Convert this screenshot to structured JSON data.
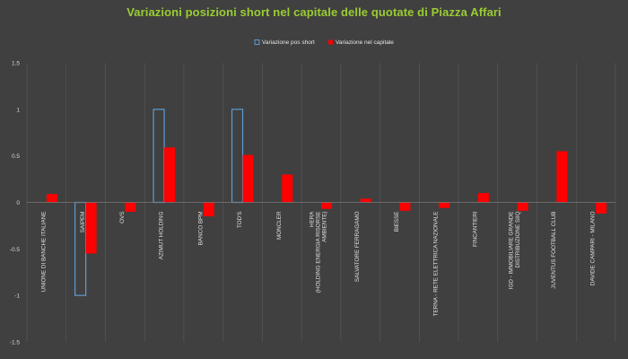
{
  "chart_data": {
    "type": "bar",
    "title": "Variazioni posizioni short nel capitale delle quotate di Piazza Affari",
    "xlabel": "",
    "ylabel": "",
    "ylim": [
      -1.5,
      1.5
    ],
    "yticks": [
      1.5,
      1,
      0.5,
      0,
      -0.5,
      -1,
      -1.5
    ],
    "ytick_labels": [
      "1.5",
      "1",
      "0.5",
      "0",
      "-0.5",
      "-1",
      "-1.5"
    ],
    "grid": "vertical separators between categories",
    "legend_position": "top-center",
    "categories": [
      [
        "UNIONE DI BANCHE ITALIANE"
      ],
      [
        "SAIPEM"
      ],
      [
        "OVS"
      ],
      [
        "AZIMUT HOLDING"
      ],
      [
        "BANCO BPM"
      ],
      [
        "TOD'S"
      ],
      [
        "MONCLER"
      ],
      [
        "HERA",
        "(HOLDING ENERGIA RISORSE",
        "AMBIENTE)"
      ],
      [
        "SALVATORE FERRAGAMO"
      ],
      [
        "BIESSE"
      ],
      [
        "TERNA - RETE ELETTRICA NAZIONALE"
      ],
      [
        "FINCANTIERI"
      ],
      [
        "IGD - IMMOBILIARE GRANDE",
        "DISTRIBUZIONE SIIQ"
      ],
      [
        "JUVENTUS FOOTBALL CLUB"
      ],
      [
        "DAVIDE CAMPARI - MILANO"
      ]
    ],
    "series": [
      {
        "name": "Variazione pos short",
        "style": "outline",
        "color": "#5b9bd5",
        "values": [
          0,
          -1,
          0,
          1,
          0,
          1,
          0,
          0,
          0,
          0,
          0,
          0,
          0,
          0,
          0
        ]
      },
      {
        "name": "Variazione nel capitale",
        "style": "filled",
        "color": "#ff0000",
        "values": [
          0.09,
          -0.55,
          -0.1,
          0.59,
          -0.15,
          0.51,
          0.3,
          -0.07,
          0.04,
          -0.09,
          -0.06,
          0.1,
          -0.09,
          0.55,
          -0.12
        ]
      }
    ]
  }
}
